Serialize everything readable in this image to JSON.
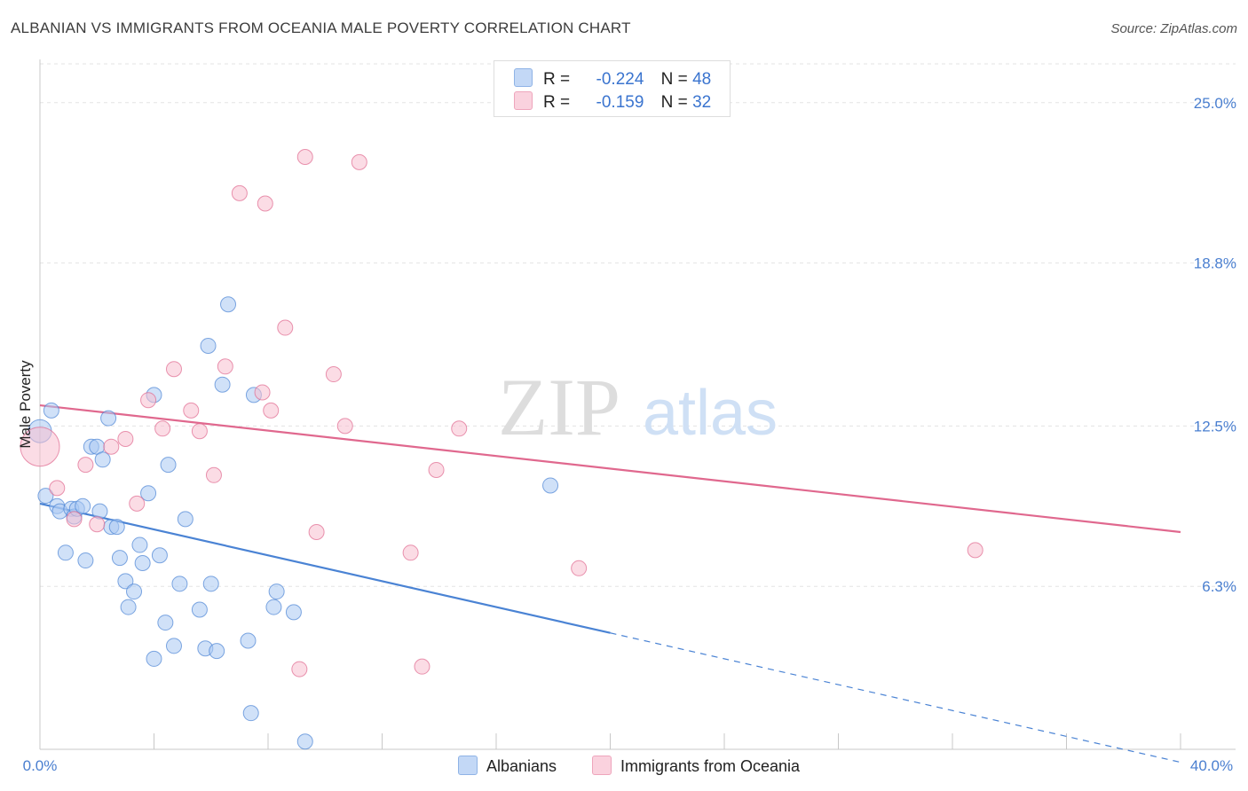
{
  "title": "ALBANIAN VS IMMIGRANTS FROM OCEANIA MALE POVERTY CORRELATION CHART",
  "source": "Source: ZipAtlas.com",
  "watermark": {
    "zip": "ZIP",
    "atlas": "atlas"
  },
  "legend": {
    "r_label": "R =",
    "n_label": "N =",
    "rows": [
      {
        "r": "-0.224",
        "n": "48",
        "color": "#a9c8f2"
      },
      {
        "r": "-0.159",
        "n": "32",
        "color": "#f7bfd0"
      }
    ]
  },
  "chart_data": {
    "type": "scatter",
    "title": "ALBANIAN VS IMMIGRANTS FROM OCEANIA MALE POVERTY CORRELATION CHART",
    "xlabel": "",
    "ylabel": "Male Poverty",
    "xlim": [
      0,
      40
    ],
    "ylim": [
      0,
      26.5
    ],
    "x_tick_labels": [
      "0.0%",
      "40.0%"
    ],
    "y_ticks": [
      6.3,
      12.5,
      18.8,
      25.0
    ],
    "y_tick_labels": [
      "6.3%",
      "12.5%",
      "18.8%",
      "25.0%"
    ],
    "series": [
      {
        "name": "Albanians",
        "color": "#4a83d4",
        "fill": "#a9c8f2",
        "points": [
          [
            0.0,
            12.3
          ],
          [
            0.4,
            13.1
          ],
          [
            0.2,
            9.8
          ],
          [
            0.6,
            9.4
          ],
          [
            0.7,
            9.2
          ],
          [
            0.9,
            7.6
          ],
          [
            1.1,
            9.3
          ],
          [
            1.2,
            9.0
          ],
          [
            1.3,
            9.3
          ],
          [
            1.5,
            9.4
          ],
          [
            1.6,
            7.3
          ],
          [
            1.8,
            11.7
          ],
          [
            2.0,
            11.7
          ],
          [
            2.1,
            9.2
          ],
          [
            2.2,
            11.2
          ],
          [
            2.4,
            12.8
          ],
          [
            2.5,
            8.6
          ],
          [
            2.7,
            8.6
          ],
          [
            2.8,
            7.4
          ],
          [
            3.0,
            6.5
          ],
          [
            3.1,
            5.5
          ],
          [
            3.3,
            6.1
          ],
          [
            3.5,
            7.9
          ],
          [
            3.6,
            7.2
          ],
          [
            3.8,
            9.9
          ],
          [
            4.0,
            13.7
          ],
          [
            4.2,
            7.5
          ],
          [
            4.0,
            3.5
          ],
          [
            4.4,
            4.9
          ],
          [
            4.5,
            11.0
          ],
          [
            4.7,
            4.0
          ],
          [
            4.9,
            6.4
          ],
          [
            5.1,
            8.9
          ],
          [
            5.6,
            5.4
          ],
          [
            5.8,
            3.9
          ],
          [
            5.9,
            15.6
          ],
          [
            6.0,
            6.4
          ],
          [
            6.2,
            3.8
          ],
          [
            6.4,
            14.1
          ],
          [
            6.6,
            17.2
          ],
          [
            7.3,
            4.2
          ],
          [
            7.5,
            13.7
          ],
          [
            7.4,
            1.4
          ],
          [
            8.2,
            5.5
          ],
          [
            8.3,
            6.1
          ],
          [
            8.9,
            5.3
          ],
          [
            9.3,
            0.3
          ],
          [
            17.9,
            10.2
          ]
        ]
      },
      {
        "name": "Immigrants from Oceania",
        "color": "#e0688e",
        "fill": "#f7bfd0",
        "points": [
          [
            0.0,
            11.7
          ],
          [
            0.6,
            10.1
          ],
          [
            1.2,
            8.9
          ],
          [
            1.6,
            11.0
          ],
          [
            2.0,
            8.7
          ],
          [
            2.5,
            11.7
          ],
          [
            3.0,
            12.0
          ],
          [
            3.4,
            9.5
          ],
          [
            3.8,
            13.5
          ],
          [
            4.3,
            12.4
          ],
          [
            4.7,
            14.7
          ],
          [
            5.3,
            13.1
          ],
          [
            5.6,
            12.3
          ],
          [
            6.1,
            10.6
          ],
          [
            6.5,
            14.8
          ],
          [
            7.0,
            21.5
          ],
          [
            7.8,
            13.8
          ],
          [
            7.9,
            21.1
          ],
          [
            8.1,
            13.1
          ],
          [
            8.6,
            16.3
          ],
          [
            9.1,
            3.1
          ],
          [
            9.3,
            22.9
          ],
          [
            9.7,
            8.4
          ],
          [
            10.3,
            14.5
          ],
          [
            10.7,
            12.5
          ],
          [
            11.2,
            22.7
          ],
          [
            13.0,
            7.6
          ],
          [
            13.4,
            3.2
          ],
          [
            13.9,
            10.8
          ],
          [
            14.7,
            12.4
          ],
          [
            18.9,
            7.0
          ],
          [
            32.8,
            7.7
          ]
        ]
      }
    ],
    "trendlines": [
      {
        "series": "Albanians",
        "x": [
          0.0,
          20.0
        ],
        "y": [
          9.5,
          4.5
        ],
        "dashed_extension": {
          "x": [
            20.0,
            40.0
          ],
          "y": [
            4.5,
            -0.5
          ]
        }
      },
      {
        "series": "Immigrants from Oceania",
        "x": [
          0.0,
          40.0
        ],
        "y": [
          13.3,
          8.4
        ]
      }
    ],
    "legend": {
      "placement": "bottom",
      "entries": [
        "Albanians",
        "Immigrants from Oceania"
      ]
    },
    "grid": true
  }
}
